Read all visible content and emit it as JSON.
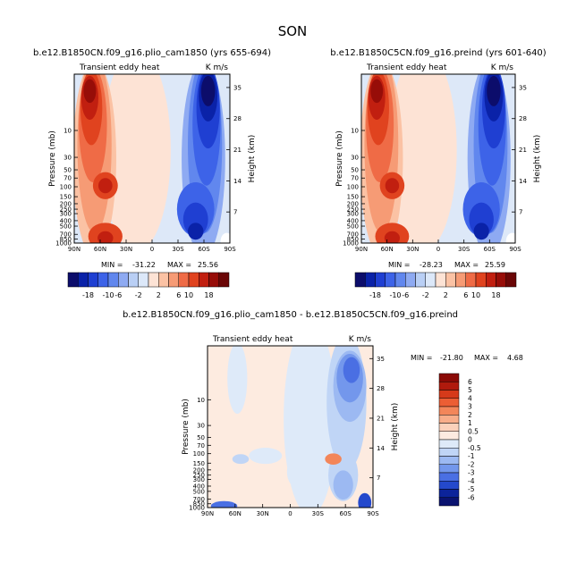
{
  "chart_data": {
    "type": "heatmap",
    "title": "SON",
    "field_label": "Transient eddy heat",
    "units": "K m/s",
    "yaxis_left_label": "Pressure (mb)",
    "yaxis_right_label": "Height (km)",
    "x_ticks": [
      "90N",
      "60N",
      "30N",
      "0",
      "30S",
      "60S",
      "90S"
    ],
    "pressure_ticks": [
      "10",
      "30",
      "50",
      "70",
      "100",
      "150",
      "200",
      "250",
      "300",
      "400",
      "500",
      "700",
      "850",
      "1000"
    ],
    "pressure_values": [
      10,
      30,
      50,
      70,
      100,
      150,
      200,
      250,
      300,
      400,
      500,
      700,
      850,
      1000
    ],
    "height_ticks": [
      "35",
      "28",
      "21",
      "14",
      "7"
    ],
    "height_values": [
      35,
      28,
      21,
      14,
      7
    ],
    "panels": [
      {
        "id": "p1",
        "subtitle": "b.e12.B1850CN.f09_g16.plio_cam1850 (yrs 655-694)",
        "min_label": "MIN =",
        "min": "-31.22",
        "max_label": "MAX =",
        "max": "25.56"
      },
      {
        "id": "p2",
        "subtitle": "b.e12.B1850C5CN.f09_g16.preind (yrs 601-640)",
        "min_label": "MIN =",
        "min": "-28.23",
        "max_label": "MAX =",
        "max": "25.59"
      },
      {
        "id": "p3",
        "subtitle": "b.e12.B1850CN.f09_g16.plio_cam1850 - b.e12.B1850C5CN.f09_g16.preind",
        "min_label": "MIN =",
        "min": "-21.80",
        "max_label": "MAX =",
        "max": "4.68"
      }
    ],
    "colorbar_main": {
      "labels": [
        "-18",
        "-10",
        "-6",
        "-2",
        "2",
        "6",
        "10",
        "18"
      ],
      "colors": [
        "#0c0d6b",
        "#0a22a8",
        "#1f3fd2",
        "#3d63e8",
        "#6187ee",
        "#8eaaf2",
        "#b9cff5",
        "#dce8f9",
        "#fde3d5",
        "#fbc2a4",
        "#f69b75",
        "#ef6b46",
        "#e0431f",
        "#c11f10",
        "#970d08",
        "#6a0606"
      ]
    },
    "colorbar_diff": {
      "labels": [
        "6",
        "5",
        "4",
        "3",
        "2",
        "1",
        "0.5",
        "0",
        "-0.5",
        "-1",
        "-2",
        "-3",
        "-4",
        "-5",
        "-6"
      ],
      "colors": [
        "#8a0a06",
        "#b01a0d",
        "#d63a1a",
        "#ec5e34",
        "#f3865a",
        "#f8ad8a",
        "#fbd1bb",
        "#fdebe0",
        "#deeaf9",
        "#c0d5f6",
        "#9cb9f2",
        "#7397ec",
        "#4a6fe3",
        "#2449cc",
        "#0c249a",
        "#0a1370"
      ]
    }
  }
}
